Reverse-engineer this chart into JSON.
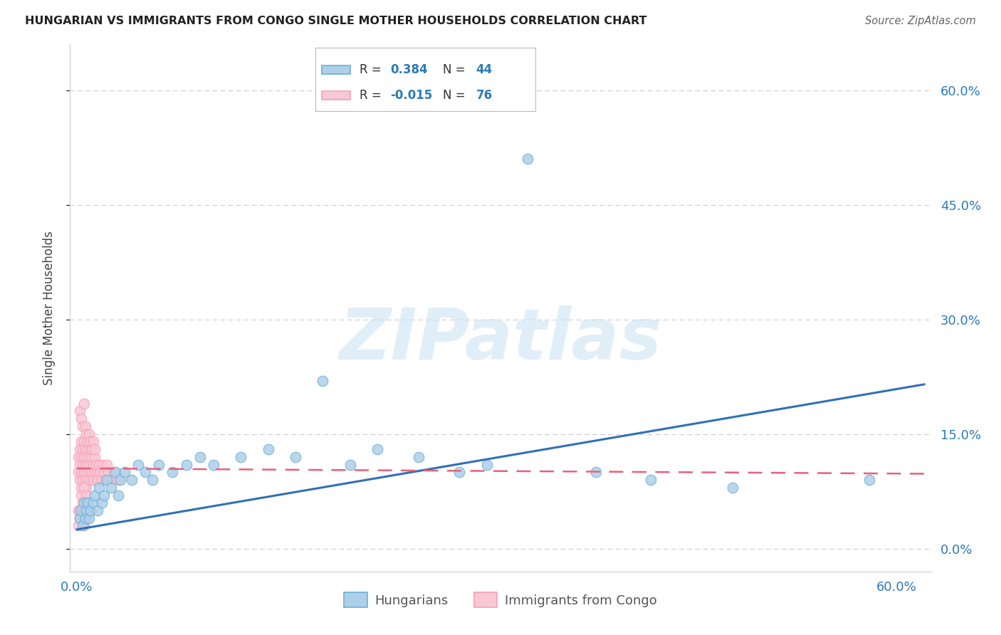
{
  "title": "HUNGARIAN VS IMMIGRANTS FROM CONGO SINGLE MOTHER HOUSEHOLDS CORRELATION CHART",
  "source": "Source: ZipAtlas.com",
  "ylabel": "Single Mother Households",
  "ytick_labels": [
    "0.0%",
    "15.0%",
    "30.0%",
    "45.0%",
    "60.0%"
  ],
  "ytick_values": [
    0.0,
    0.15,
    0.3,
    0.45,
    0.6
  ],
  "xtick_values": [
    0.0,
    0.1,
    0.2,
    0.3,
    0.4,
    0.5,
    0.6
  ],
  "xlim": [
    -0.005,
    0.625
  ],
  "ylim": [
    -0.03,
    0.66
  ],
  "blue_color": "#6baed6",
  "pink_color": "#f4a0b5",
  "blue_line_color": "#3070b8",
  "pink_line_color": "#e8607a",
  "blue_marker_color": "#aecfe8",
  "pink_marker_color": "#f9c8d5",
  "background_color": "#ffffff",
  "grid_color": "#cccccc",
  "watermark": "ZIPatlas",
  "legend_items": [
    "Hungarians",
    "Immigrants from Congo"
  ],
  "blue_line_x0": 0.0,
  "blue_line_y0": 0.025,
  "blue_line_x1": 0.62,
  "blue_line_y1": 0.215,
  "pink_line_x0": 0.0,
  "pink_line_y0": 0.105,
  "pink_line_x1": 0.62,
  "pink_line_y1": 0.098,
  "blue_scatter_x": [
    0.002,
    0.003,
    0.004,
    0.005,
    0.006,
    0.007,
    0.008,
    0.009,
    0.01,
    0.012,
    0.013,
    0.015,
    0.016,
    0.018,
    0.02,
    0.022,
    0.025,
    0.028,
    0.03,
    0.032,
    0.035,
    0.04,
    0.045,
    0.05,
    0.055,
    0.06,
    0.07,
    0.08,
    0.09,
    0.1,
    0.12,
    0.14,
    0.16,
    0.18,
    0.2,
    0.22,
    0.25,
    0.28,
    0.3,
    0.33,
    0.38,
    0.42,
    0.48,
    0.58
  ],
  "blue_scatter_y": [
    0.04,
    0.05,
    0.03,
    0.06,
    0.04,
    0.05,
    0.06,
    0.04,
    0.05,
    0.06,
    0.07,
    0.05,
    0.08,
    0.06,
    0.07,
    0.09,
    0.08,
    0.1,
    0.07,
    0.09,
    0.1,
    0.09,
    0.11,
    0.1,
    0.09,
    0.11,
    0.1,
    0.11,
    0.12,
    0.11,
    0.12,
    0.13,
    0.12,
    0.22,
    0.11,
    0.13,
    0.12,
    0.1,
    0.11,
    0.51,
    0.1,
    0.09,
    0.08,
    0.09
  ],
  "pink_scatter_x": [
    0.001,
    0.001,
    0.002,
    0.002,
    0.002,
    0.003,
    0.003,
    0.003,
    0.003,
    0.004,
    0.004,
    0.004,
    0.005,
    0.005,
    0.005,
    0.005,
    0.006,
    0.006,
    0.006,
    0.007,
    0.007,
    0.007,
    0.008,
    0.008,
    0.008,
    0.009,
    0.009,
    0.01,
    0.01,
    0.01,
    0.011,
    0.011,
    0.012,
    0.012,
    0.013,
    0.013,
    0.014,
    0.015,
    0.015,
    0.016,
    0.017,
    0.018,
    0.019,
    0.02,
    0.021,
    0.022,
    0.023,
    0.025,
    0.027,
    0.03,
    0.002,
    0.003,
    0.004,
    0.005,
    0.006,
    0.007,
    0.008,
    0.009,
    0.01,
    0.011,
    0.012,
    0.013,
    0.003,
    0.004,
    0.005,
    0.006,
    0.007,
    0.008,
    0.001,
    0.002,
    0.004,
    0.006,
    0.001,
    0.002,
    0.003,
    0.005
  ],
  "pink_scatter_y": [
    0.1,
    0.12,
    0.09,
    0.11,
    0.13,
    0.1,
    0.12,
    0.14,
    0.08,
    0.11,
    0.13,
    0.09,
    0.1,
    0.12,
    0.14,
    0.08,
    0.11,
    0.13,
    0.09,
    0.1,
    0.12,
    0.08,
    0.11,
    0.13,
    0.09,
    0.1,
    0.12,
    0.11,
    0.09,
    0.13,
    0.1,
    0.12,
    0.09,
    0.11,
    0.1,
    0.12,
    0.11,
    0.1,
    0.09,
    0.11,
    0.1,
    0.09,
    0.11,
    0.1,
    0.09,
    0.11,
    0.1,
    0.09,
    0.1,
    0.09,
    0.18,
    0.17,
    0.16,
    0.19,
    0.16,
    0.15,
    0.14,
    0.15,
    0.14,
    0.13,
    0.14,
    0.13,
    0.07,
    0.06,
    0.08,
    0.06,
    0.07,
    0.06,
    0.05,
    0.04,
    0.05,
    0.04,
    0.03,
    0.05,
    0.04,
    0.03
  ]
}
